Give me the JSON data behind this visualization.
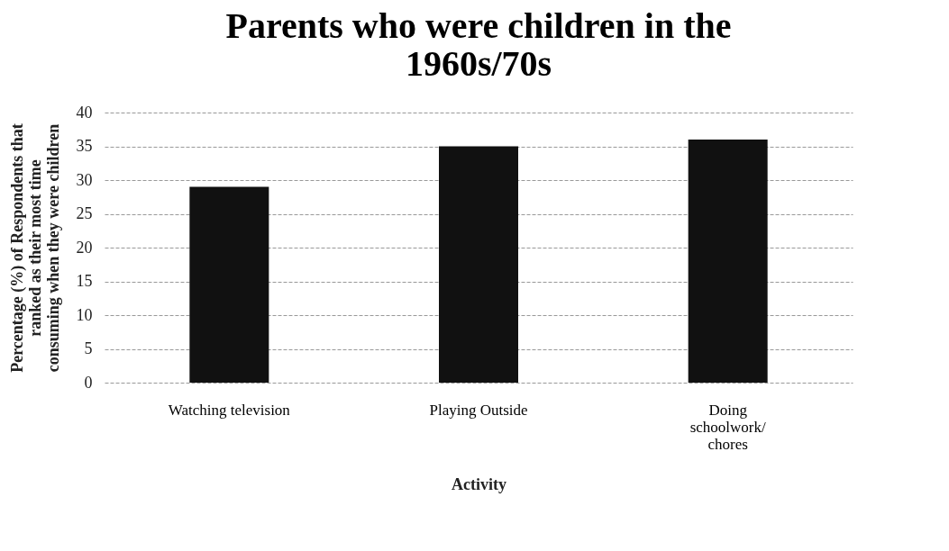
{
  "chart_data": {
    "type": "bar",
    "title": "Parents who were children in the 1960s/70s",
    "xlabel": "Activity",
    "ylabel": "Percentage (%) of Respondents that ranked as their most time consuming when they were children",
    "categories": [
      "Watching television",
      "Playing Outside",
      "Doing schoolwork/ chores"
    ],
    "values": [
      29,
      35,
      36
    ],
    "color": "#111111",
    "ylim": [
      0,
      40
    ],
    "yticks": [
      0,
      5,
      10,
      15,
      20,
      25,
      30,
      35,
      40
    ],
    "grid": "y"
  }
}
